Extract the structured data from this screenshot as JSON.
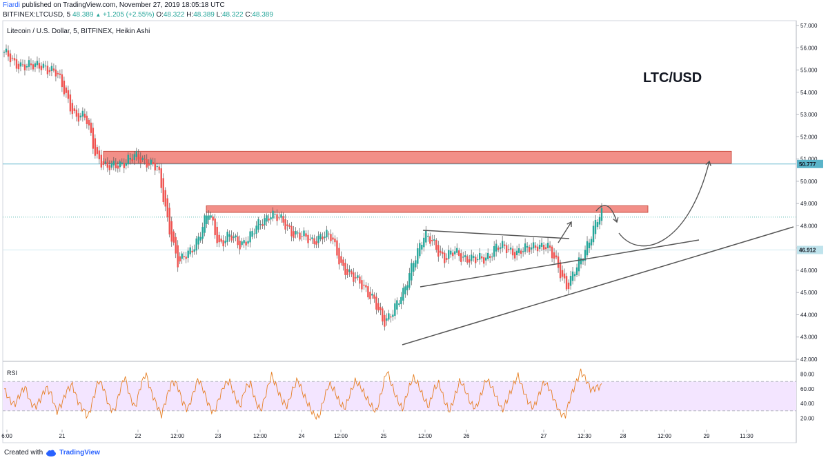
{
  "header": {
    "user": "Fiardi",
    "published": "published on TradingView.com, November 27, 2019 18:05:18 UTC",
    "symbol": "BITFINEX:LTCUSD, 5",
    "last": "48.389",
    "change": "+1.205 (+2.55%)",
    "o_label": "O:",
    "o": "48.322",
    "h_label": "H:",
    "h": "48.389",
    "l_label": "L:",
    "l": "48.322",
    "c_label": "C:",
    "c": "48.389"
  },
  "footer": {
    "created_with": "Created with",
    "brand": "TradingView"
  },
  "chart_data": [
    {
      "type": "candlestick",
      "title": "Litecoin / U.S. Dollar, 5, BITFINEX, Heikin Ashi",
      "annotation": "LTC/USD",
      "ylim": [
        42.0,
        57.0
      ],
      "y_ticks": [
        "42.000",
        "43.000",
        "44.000",
        "45.000",
        "46.000",
        "47.000",
        "48.000",
        "49.000",
        "50.000",
        "51.000",
        "52.000",
        "53.000",
        "54.000",
        "55.000",
        "56.000",
        "57.000"
      ],
      "x_ticks": [
        "6:00",
        "21",
        "22",
        "12:00",
        "23",
        "12:00",
        "24",
        "12:00",
        "25",
        "12:00",
        "26",
        "27",
        "12:30",
        "28",
        "12:00",
        "29",
        "11:30"
      ],
      "price_labels": [
        {
          "value": 50.777,
          "label": "50.777",
          "color": "#5ab4c9"
        },
        {
          "value": 46.912,
          "label": "46.912",
          "color": "#bfe3ec"
        }
      ],
      "current_price": 48.389,
      "resistance_zones": [
        {
          "y_low": 50.8,
          "y_high": 51.35,
          "color": "#f07b73"
        },
        {
          "y_low": 48.6,
          "y_high": 48.9,
          "color": "#f07b73"
        }
      ],
      "close_path": [
        [
          0,
          55.8
        ],
        [
          3,
          55.2
        ],
        [
          6,
          55.3
        ],
        [
          9,
          55.1
        ],
        [
          12,
          55.2
        ],
        [
          15,
          54.9
        ],
        [
          18,
          53.9
        ],
        [
          21,
          52.9
        ],
        [
          24,
          52.8
        ],
        [
          27,
          51.2
        ],
        [
          30,
          50.5
        ],
        [
          33,
          50.8
        ],
        [
          36,
          50.9
        ],
        [
          39,
          51.1
        ],
        [
          42,
          50.9
        ],
        [
          45,
          50.5
        ],
        [
          48,
          48.2
        ],
        [
          51,
          46.2
        ],
        [
          54,
          46.8
        ],
        [
          57,
          47.5
        ],
        [
          60,
          48.6
        ],
        [
          63,
          47.2
        ],
        [
          66,
          47.5
        ],
        [
          69,
          47.2
        ],
        [
          72,
          47.5
        ],
        [
          75,
          48.1
        ],
        [
          78,
          48.6
        ],
        [
          81,
          48.2
        ],
        [
          84,
          47.8
        ],
        [
          87,
          47.5
        ],
        [
          90,
          47.3
        ],
        [
          93,
          47.6
        ],
        [
          96,
          47.4
        ],
        [
          99,
          46.2
        ],
        [
          102,
          45.6
        ],
        [
          105,
          45.4
        ],
        [
          108,
          44.7
        ],
        [
          111,
          43.6
        ],
        [
          114,
          44.3
        ],
        [
          117,
          44.9
        ],
        [
          120,
          46.6
        ],
        [
          123,
          47.5
        ],
        [
          126,
          47.2
        ],
        [
          129,
          46.5
        ],
        [
          132,
          46.8
        ],
        [
          135,
          46.6
        ],
        [
          138,
          46.4
        ],
        [
          141,
          46.6
        ],
        [
          144,
          47.0
        ],
        [
          147,
          47.0
        ],
        [
          150,
          46.8
        ],
        [
          153,
          46.9
        ],
        [
          156,
          47.2
        ],
        [
          159,
          47.0
        ],
        [
          162,
          46.3
        ],
        [
          165,
          45.2
        ],
        [
          168,
          46.2
        ],
        [
          171,
          47.3
        ],
        [
          174,
          48.3
        ],
        [
          175,
          48.5
        ]
      ],
      "lines": [
        {
          "from": [
            583,
            500
          ],
          "to": [
            1150,
            329
          ]
        },
        {
          "from": [
            609,
            416
          ],
          "to": [
            1013,
            348
          ]
        },
        {
          "from": [
            613,
            334
          ],
          "to": [
            825,
            346
          ]
        }
      ],
      "arrows": [
        {
          "kind": "straight",
          "from": [
            809,
            352
          ],
          "to": [
            828,
            322
          ]
        },
        {
          "kind": "curve-up",
          "from": [
            897,
            338
          ],
          "to": [
            1028,
            234
          ]
        },
        {
          "kind": "curve-hook",
          "from": [
            864,
            306
          ],
          "to": [
            894,
            322
          ]
        }
      ]
    },
    {
      "type": "line",
      "title": "RSI",
      "ylim": [
        10,
        90
      ],
      "y_ticks": [
        "20.00",
        "40.00",
        "60.00",
        "80.00"
      ],
      "band": [
        30,
        70
      ],
      "values": [
        60,
        45,
        38,
        52,
        63,
        41,
        35,
        47,
        62,
        53,
        28,
        40,
        58,
        66,
        44,
        33,
        21,
        46,
        72,
        61,
        36,
        29,
        55,
        78,
        49,
        34,
        63,
        82,
        57,
        40,
        24,
        48,
        70,
        66,
        43,
        31,
        52,
        74,
        59,
        38,
        26,
        47,
        65,
        71,
        50,
        35,
        61,
        68,
        42,
        30,
        55,
        79,
        62,
        44,
        36,
        58,
        73,
        54,
        39,
        25,
        20,
        46,
        67,
        58,
        41,
        33,
        53,
        71,
        63,
        49,
        37,
        28,
        55,
        86,
        64,
        45,
        32,
        56,
        76,
        66,
        48,
        35,
        60,
        68,
        43,
        29,
        50,
        72,
        58,
        40,
        33,
        52,
        74,
        63,
        47,
        30,
        45,
        62,
        79,
        59,
        42,
        34,
        51,
        70,
        61,
        44,
        28,
        22,
        48,
        66,
        84,
        73,
        58,
        62,
        64
      ]
    }
  ]
}
